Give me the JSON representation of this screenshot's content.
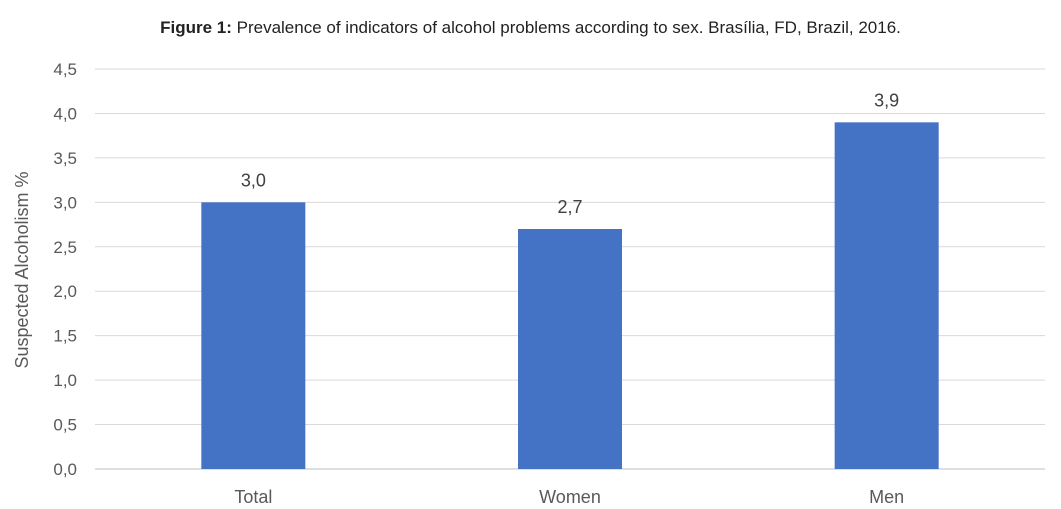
{
  "chart_data": {
    "type": "bar",
    "title_prefix": "Figure 1:",
    "title": "Prevalence of indicators of alcohol problems according to sex. Brasília, FD, Brazil, 2016.",
    "xlabel": "",
    "ylabel": "Suspected Alcoholism %",
    "categories": [
      "Total",
      "Women",
      "Men"
    ],
    "values": [
      3.0,
      2.7,
      3.9
    ],
    "value_labels": [
      "3,0",
      "2,7",
      "3,9"
    ],
    "ylim": [
      0,
      4.5
    ],
    "yticks": [
      "0,0",
      "0,5",
      "1,0",
      "1,5",
      "2,0",
      "2,5",
      "3,0",
      "3,5",
      "4,0",
      "4,5"
    ],
    "grid": true,
    "bar_color": "#4472C4"
  }
}
